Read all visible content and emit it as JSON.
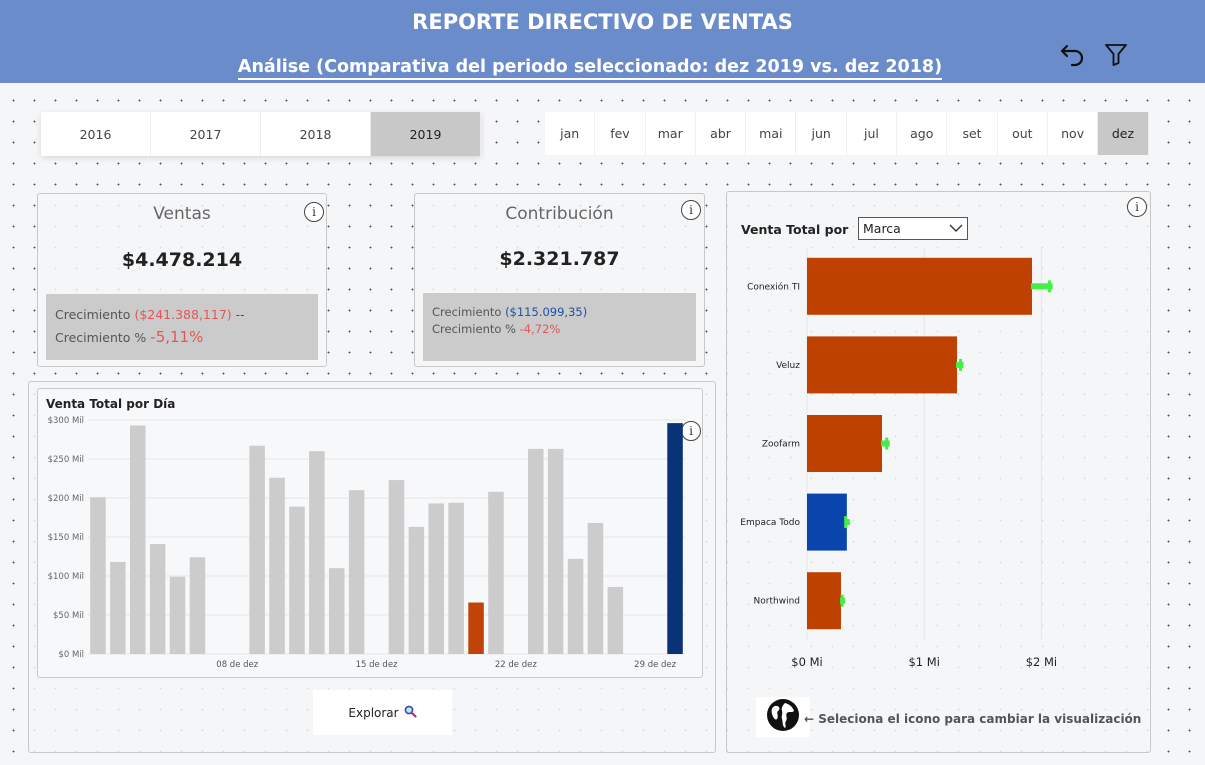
{
  "header": {
    "title": "REPORTE DIRECTIVO DE VENTAS",
    "subtitle": "Análise (Comparativa del periodo seleccionado: dez 2019 vs. dez 2018)",
    "undo_icon": "undo-icon",
    "filter_icon": "filter-icon"
  },
  "years": [
    {
      "label": "2016",
      "selected": false
    },
    {
      "label": "2017",
      "selected": false
    },
    {
      "label": "2018",
      "selected": false
    },
    {
      "label": "2019",
      "selected": true
    }
  ],
  "months": [
    {
      "label": "jan",
      "selected": false
    },
    {
      "label": "fev",
      "selected": false
    },
    {
      "label": "mar",
      "selected": false
    },
    {
      "label": "abr",
      "selected": false
    },
    {
      "label": "mai",
      "selected": false
    },
    {
      "label": "jun",
      "selected": false
    },
    {
      "label": "jul",
      "selected": false
    },
    {
      "label": "ago",
      "selected": false
    },
    {
      "label": "set",
      "selected": false
    },
    {
      "label": "out",
      "selected": false
    },
    {
      "label": "nov",
      "selected": false
    },
    {
      "label": "dez",
      "selected": true
    }
  ],
  "kpi_ventas": {
    "title": "Ventas",
    "value": "$4.478.214",
    "growth_label": "Crecimiento",
    "growth_value": "($241.388,117)",
    "growth_suffix": "--",
    "growth_pct_label": "Crecimiento %",
    "growth_pct_value": "-5,11%"
  },
  "kpi_contribucion": {
    "title": "Contribución",
    "value": "$2.321.787",
    "growth_label": "Crecimiento",
    "growth_value": "($115.099,35)",
    "growth_pct_label": "Crecimiento %",
    "growth_pct_value": "-4,72%"
  },
  "daily_chart": {
    "title": "Venta Total por Día",
    "explore_label": "Explorar",
    "explore_icon": "magnifier-icon"
  },
  "brand_chart": {
    "title": "Venta Total por",
    "dropdown_value": "Marca",
    "hint": "← Seleciona el icono para cambiar la visualización",
    "globe_icon": "globe-icon"
  },
  "chart_data": [
    {
      "type": "bar",
      "title": "Venta Total por Día",
      "x": [
        1,
        2,
        3,
        4,
        5,
        6,
        7,
        8,
        9,
        10,
        11,
        12,
        13,
        14,
        15,
        16,
        17,
        18,
        19,
        20,
        21,
        22,
        23,
        24,
        25,
        26,
        27,
        28,
        29,
        30
      ],
      "values": [
        201,
        118,
        293,
        141,
        99,
        124,
        0,
        0,
        267,
        226,
        189,
        260,
        110,
        210,
        0,
        223,
        163,
        193,
        194,
        66,
        208,
        0,
        263,
        263,
        122,
        168,
        86,
        0,
        0,
        296
      ],
      "highlight": {
        "20": "#c0440a",
        "30": "#0a3278"
      },
      "bar_color": "#cccccc",
      "x_ticks": [
        {
          "x": 8,
          "label": "08 de dez"
        },
        {
          "x": 15,
          "label": "15 de dez"
        },
        {
          "x": 22,
          "label": "22 de dez"
        },
        {
          "x": 29,
          "label": "29 de dez"
        }
      ],
      "y_ticks": [
        {
          "v": 0,
          "label": "$0 Mil"
        },
        {
          "v": 50,
          "label": "$50 Mil"
        },
        {
          "v": 100,
          "label": "$100 Mil"
        },
        {
          "v": 150,
          "label": "$150 Mil"
        },
        {
          "v": 200,
          "label": "$200 Mil"
        },
        {
          "v": 250,
          "label": "$250 Mil"
        },
        {
          "v": 300,
          "label": "$300 Mil"
        }
      ],
      "ylim": [
        0,
        300
      ],
      "grid": true
    },
    {
      "type": "bar",
      "orientation": "horizontal",
      "title": "Venta Total por Marca",
      "categories": [
        "Conexión TI",
        "Veluz",
        "Zoofarm",
        "Empaca Todo",
        "Northwind"
      ],
      "values": [
        1.92,
        1.28,
        0.64,
        0.34,
        0.29
      ],
      "previous_values": [
        2.07,
        1.31,
        0.68,
        0.33,
        0.3
      ],
      "colors": [
        "#bf4100",
        "#bf4100",
        "#bf4100",
        "#0a44ad",
        "#bf4100"
      ],
      "marker_color": "#44ee44",
      "x_ticks": [
        {
          "v": 0,
          "label": "$0 Mi"
        },
        {
          "v": 1,
          "label": "$1 Mi"
        },
        {
          "v": 2,
          "label": "$2 Mi"
        }
      ],
      "xlim": [
        0,
        2.5
      ],
      "grid": true
    }
  ]
}
